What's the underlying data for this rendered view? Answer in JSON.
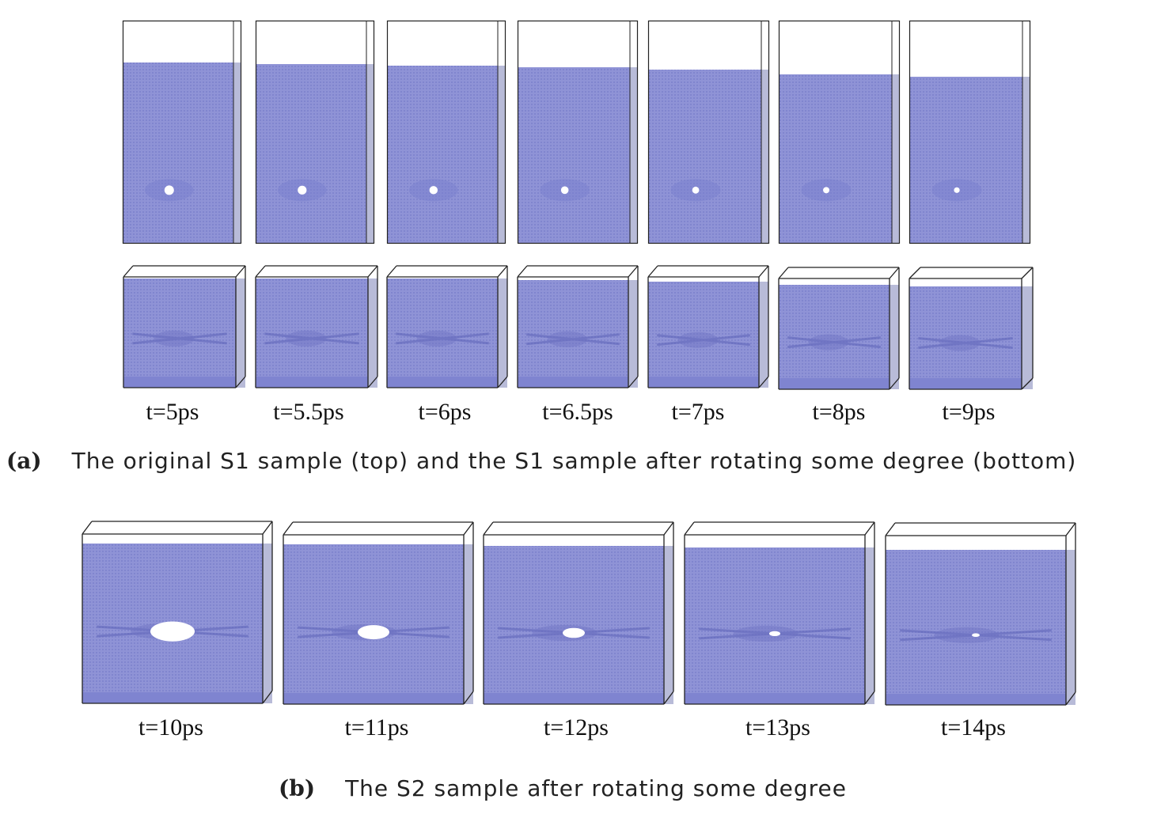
{
  "colors": {
    "fill": "#8f93d6",
    "grid": "#6e74c6",
    "frame": "#222222",
    "side": "#b8bbd8"
  },
  "panel_a": {
    "label": "(a)",
    "caption": "The original S1 sample (top) and the S1 sample after rotating some degree (bottom)",
    "frames": [
      {
        "time": "t=5ps"
      },
      {
        "time": "t=5.5ps"
      },
      {
        "time": "t=6ps"
      },
      {
        "time": "t=6.5ps"
      },
      {
        "time": "t=7ps"
      },
      {
        "time": "t=8ps"
      },
      {
        "time": "t=9ps"
      }
    ]
  },
  "panel_b": {
    "label": "(b)",
    "caption": "The S2 sample after rotating some degree",
    "frames": [
      {
        "time": "t=10ps"
      },
      {
        "time": "t=11ps"
      },
      {
        "time": "t=12ps"
      },
      {
        "time": "t=13ps"
      },
      {
        "time": "t=14ps"
      }
    ]
  }
}
